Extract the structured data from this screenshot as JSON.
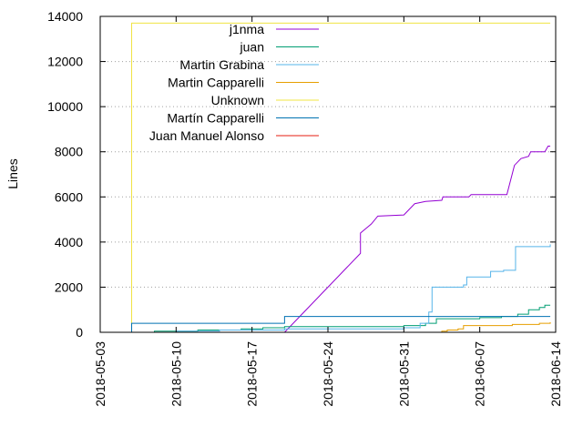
{
  "chart_data": {
    "type": "line",
    "title": "",
    "xlabel": "",
    "ylabel": "Lines",
    "grid": true,
    "legend_position": "top-left",
    "xlim": [
      "2018-05-03",
      "2018-06-14"
    ],
    "ylim": [
      0,
      14000
    ],
    "y_ticks": [
      0,
      2000,
      4000,
      6000,
      8000,
      10000,
      12000,
      14000
    ],
    "x_ticks": [
      "2018-05-03",
      "2018-05-10",
      "2018-05-17",
      "2018-05-24",
      "2018-05-31",
      "2018-06-07",
      "2018-06-14"
    ],
    "series": [
      {
        "name": "j1nma",
        "color": "#9400d3",
        "step": false,
        "points": [
          [
            "2018-05-20",
            0
          ],
          [
            "2018-05-27",
            3500
          ],
          [
            "2018-05-27",
            4400
          ],
          [
            "2018-05-27.5",
            4600
          ],
          [
            "2018-05-28",
            4800
          ],
          [
            "2018-05-28.6",
            5150
          ],
          [
            "2018-05-31",
            5200
          ],
          [
            "2018-06-01",
            5700
          ],
          [
            "2018-06-02",
            5800
          ],
          [
            "2018-06-03.5",
            5850
          ],
          [
            "2018-06-03.6",
            6000
          ],
          [
            "2018-06-06",
            6000
          ],
          [
            "2018-06-06.2",
            6100
          ],
          [
            "2018-06-09.5",
            6100
          ],
          [
            "2018-06-10.2",
            7400
          ],
          [
            "2018-06-10.8",
            7700
          ],
          [
            "2018-06-11.5",
            7800
          ],
          [
            "2018-06-11.7",
            8000
          ],
          [
            "2018-06-13",
            8000
          ],
          [
            "2018-06-13.3",
            8250
          ],
          [
            "2018-06-13.5",
            8250
          ]
        ]
      },
      {
        "name": "juan",
        "color": "#009e73",
        "step": true,
        "points": [
          [
            "2018-05-07",
            0
          ],
          [
            "2018-05-08",
            50
          ],
          [
            "2018-05-12",
            100
          ],
          [
            "2018-05-16",
            150
          ],
          [
            "2018-05-18",
            200
          ],
          [
            "2018-05-20",
            250
          ],
          [
            "2018-05-31",
            300
          ],
          [
            "2018-06-02",
            400
          ],
          [
            "2018-06-03",
            600
          ],
          [
            "2018-06-07",
            650
          ],
          [
            "2018-06-09",
            700
          ],
          [
            "2018-06-10.5",
            800
          ],
          [
            "2018-06-11.5",
            1000
          ],
          [
            "2018-06-12.5",
            1100
          ],
          [
            "2018-06-13",
            1200
          ],
          [
            "2018-06-13.5",
            1200
          ]
        ]
      },
      {
        "name": "Martin Grabina",
        "color": "#56b4e9",
        "step": true,
        "points": [
          [
            "2018-05-07",
            0
          ],
          [
            "2018-05-10",
            50
          ],
          [
            "2018-05-14",
            100
          ],
          [
            "2018-05-20",
            150
          ],
          [
            "2018-05-31",
            200
          ],
          [
            "2018-06-01.5",
            400
          ],
          [
            "2018-06-02.3",
            900
          ],
          [
            "2018-06-02.6",
            2000
          ],
          [
            "2018-06-05.5",
            2100
          ],
          [
            "2018-06-05.8",
            2450
          ],
          [
            "2018-06-08",
            2700
          ],
          [
            "2018-06-09.2",
            2750
          ],
          [
            "2018-06-10.3",
            3800
          ],
          [
            "2018-06-13.5",
            3900
          ]
        ]
      },
      {
        "name": "Martin Capparelli",
        "color": "#e69f00",
        "step": true,
        "points": [
          [
            "2018-06-03",
            0
          ],
          [
            "2018-06-03.5",
            50
          ],
          [
            "2018-06-04",
            100
          ],
          [
            "2018-06-05",
            150
          ],
          [
            "2018-06-05.5",
            300
          ],
          [
            "2018-06-10",
            350
          ],
          [
            "2018-06-12.5",
            400
          ],
          [
            "2018-06-13.5",
            450
          ]
        ]
      },
      {
        "name": "Unknown",
        "color": "#f0e442",
        "step": true,
        "points": [
          [
            "2018-05-05.8",
            0
          ],
          [
            "2018-05-05.9",
            13700
          ],
          [
            "2018-06-13.5",
            13700
          ]
        ]
      },
      {
        "name": "Martín Capparelli",
        "color": "#0072b2",
        "step": true,
        "points": [
          [
            "2018-05-05.8",
            0
          ],
          [
            "2018-05-05.9",
            400
          ],
          [
            "2018-05-19.9",
            400
          ],
          [
            "2018-05-20",
            700
          ],
          [
            "2018-06-13.5",
            700
          ]
        ]
      },
      {
        "name": "Juan Manuel Alonso",
        "color": "#e51e10",
        "step": true,
        "points": []
      }
    ]
  }
}
